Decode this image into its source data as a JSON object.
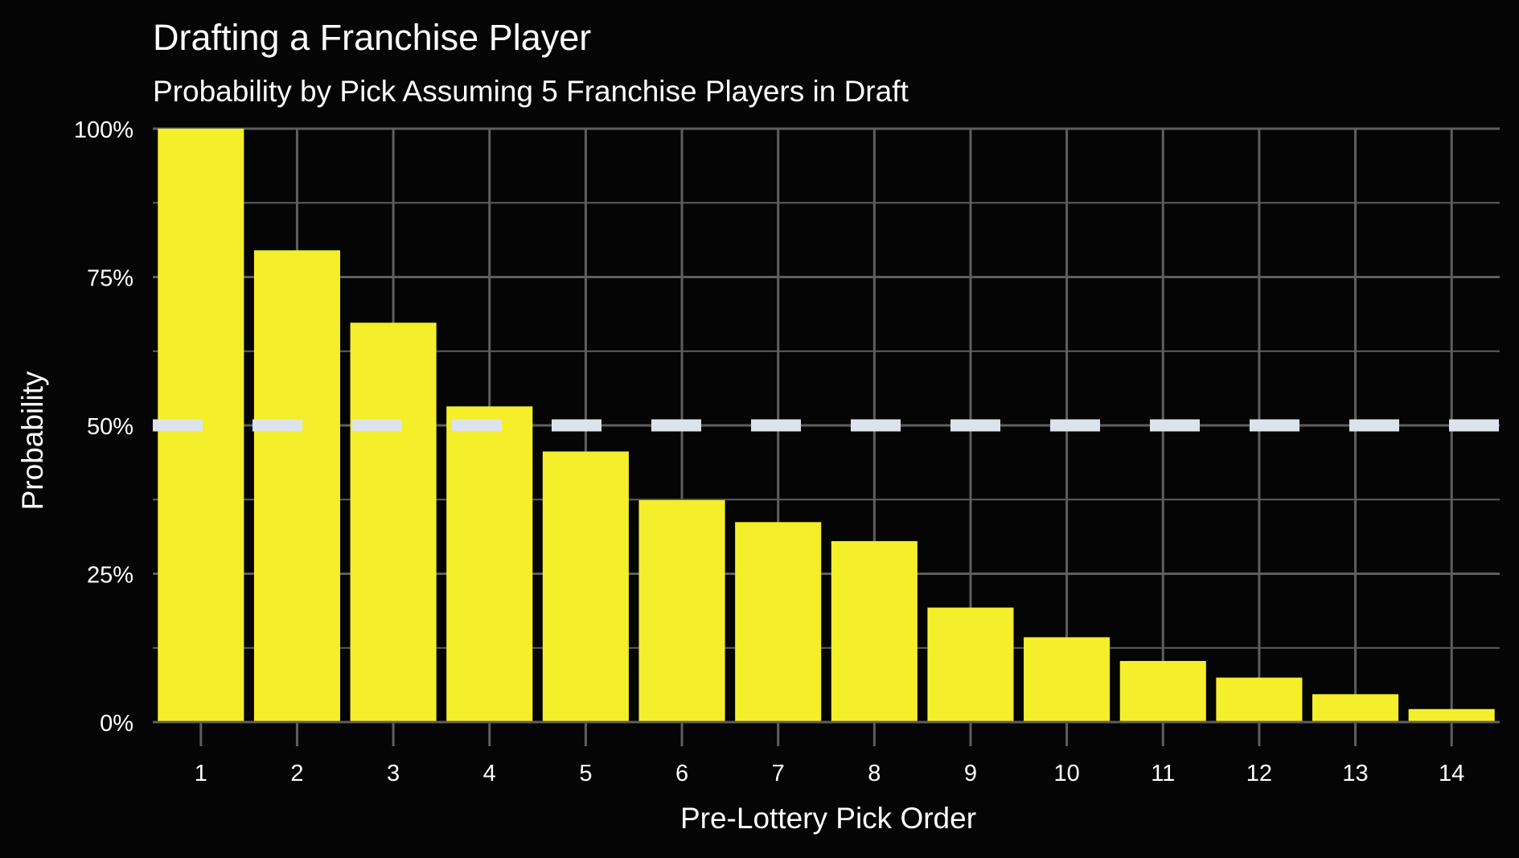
{
  "chart_data": {
    "type": "bar",
    "title": "Drafting a Franchise Player",
    "subtitle": "Probability by Pick Assuming 5 Franchise Players in Draft",
    "xlabel": "Pre-Lottery Pick Order",
    "ylabel": "Probability",
    "categories": [
      "1",
      "2",
      "3",
      "4",
      "5",
      "6",
      "7",
      "8",
      "9",
      "10",
      "11",
      "12",
      "13",
      "14"
    ],
    "values": [
      100,
      79.5,
      67.3,
      53.2,
      45.6,
      37.4,
      33.7,
      30.5,
      19.3,
      14.3,
      10.3,
      7.5,
      4.7,
      2.2
    ],
    "ylim": [
      0,
      100
    ],
    "y_ticks": [
      "0%",
      "25%",
      "50%",
      "75%",
      "100%"
    ],
    "y_tick_values": [
      0,
      25,
      50,
      75,
      100
    ],
    "reference_line": {
      "value": 50,
      "style": "dashed",
      "color": "#dce3ea"
    },
    "grid": true,
    "legend": "none",
    "colors": {
      "background": "#050506",
      "bar": "#f5ee2a",
      "grid": "#5e5e5e",
      "text": "#ffffff"
    }
  }
}
